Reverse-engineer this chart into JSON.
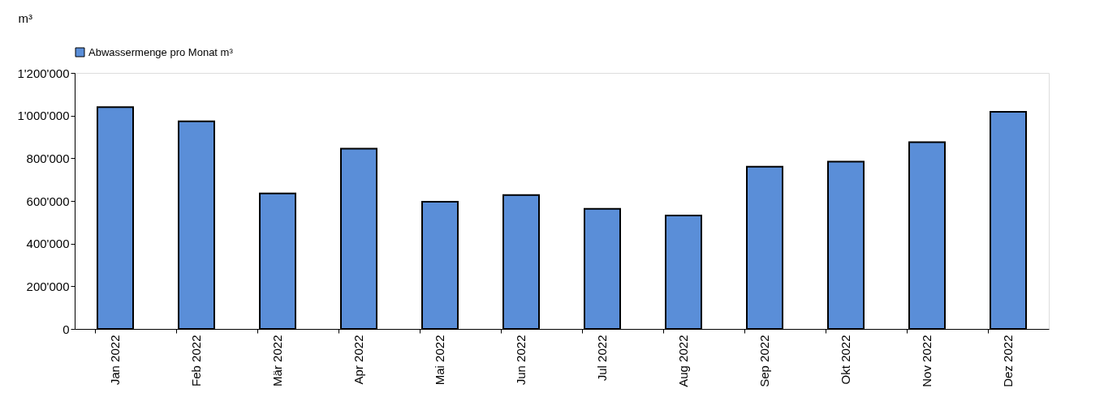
{
  "chart_data": {
    "type": "bar",
    "ylabel": "m³",
    "categories": [
      "Jan 2022",
      "Feb 2022",
      "Mär 2022",
      "Apr 2022",
      "Mai 2022",
      "Jun 2022",
      "Jul 2022",
      "Aug 2022",
      "Sep 2022",
      "Okt 2022",
      "Nov 2022",
      "Dez 2022"
    ],
    "series": [
      {
        "name": "Abwassermenge pro Monat m³",
        "color": "#5a8ed8",
        "values": [
          1040000,
          973000,
          635000,
          845000,
          596000,
          628000,
          563000,
          532000,
          760000,
          784000,
          875000,
          1018000
        ]
      }
    ],
    "ylim": [
      0,
      1200000
    ],
    "yticks": [
      0,
      {
        "value": 200000,
        "label": "200'000"
      },
      {
        "value": 400000,
        "label": "400'000"
      },
      {
        "value": 600000,
        "label": "600'000"
      },
      {
        "value": 800000,
        "label": "800'000"
      },
      {
        "value": 1000000,
        "label": "1'000'000"
      },
      {
        "value": 1200000,
        "label": "1'200'000"
      }
    ],
    "grid": false,
    "legend": "top"
  }
}
